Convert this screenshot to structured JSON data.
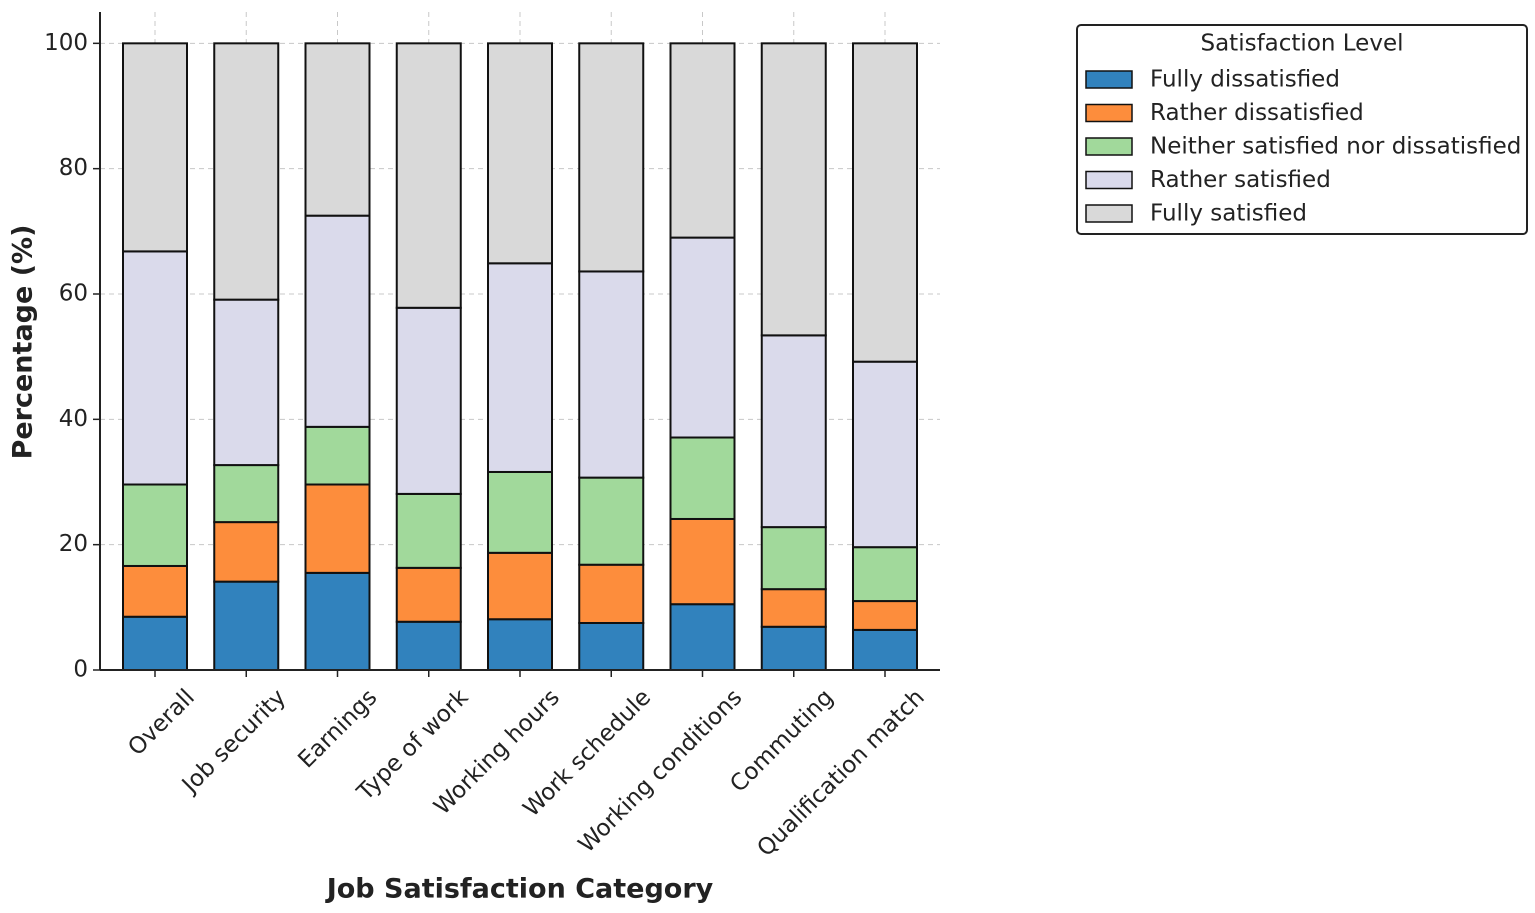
{
  "chart_data": {
    "type": "stacked_bar",
    "x_label": "Job Satisfaction Category",
    "y_label": "Percentage (%)",
    "categories": [
      "Overall",
      "Job security",
      "Earnings",
      "Type of work",
      "Working hours",
      "Work schedule",
      "Working conditions",
      "Commuting",
      "Qualification match"
    ],
    "series": [
      {
        "name": "Fully dissatisfied",
        "color": "#3182bd",
        "values": [
          8.5,
          14.1,
          15.5,
          7.7,
          8.1,
          7.5,
          10.5,
          6.9,
          6.4
        ]
      },
      {
        "name": "Rather dissatisfied",
        "color": "#fd8d3c",
        "values": [
          8.1,
          9.5,
          14.1,
          8.6,
          10.6,
          9.3,
          13.6,
          6.0,
          4.6
        ]
      },
      {
        "name": "Neither satisfied nor dissatisfied",
        "color": "#a1d99b",
        "values": [
          13.0,
          9.1,
          9.2,
          11.8,
          12.9,
          13.9,
          13.0,
          9.9,
          8.6
        ]
      },
      {
        "name": "Rather satisfied",
        "color": "#dadaeb",
        "values": [
          37.2,
          26.4,
          33.7,
          29.7,
          33.3,
          32.9,
          31.9,
          30.6,
          29.6
        ]
      },
      {
        "name": "Fully satisfied",
        "color": "#d9d9d9",
        "values": [
          33.2,
          40.9,
          27.5,
          42.2,
          35.1,
          36.4,
          31.0,
          46.6,
          50.8
        ]
      }
    ],
    "ylim": [
      0,
      105
    ],
    "yticks": [
      0,
      20,
      40,
      60,
      80,
      100
    ],
    "grid": true,
    "legend_title": "Satisfaction Level",
    "legend_position": "outside-top-right"
  }
}
